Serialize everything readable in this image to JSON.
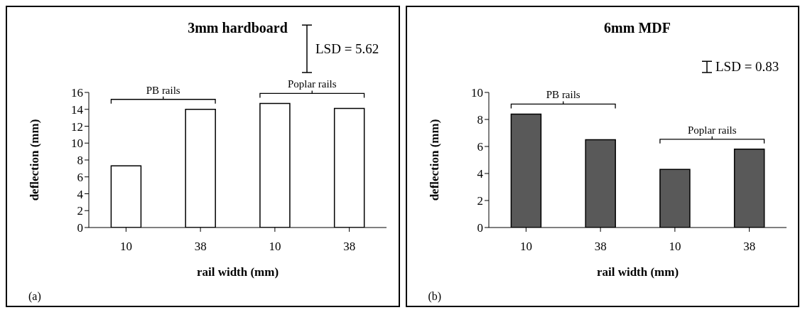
{
  "chart_data": [
    {
      "type": "bar",
      "title": "3mm hardboard",
      "xlabel": "rail width (mm)",
      "ylabel": "deflection (mm)",
      "categories": [
        "10",
        "38",
        "10",
        "38"
      ],
      "values": [
        7.3,
        14.0,
        14.7,
        14.1
      ],
      "color": "#ffffff",
      "ylim": [
        0,
        16
      ],
      "yticks": [
        0,
        2,
        4,
        6,
        8,
        10,
        12,
        14,
        16
      ],
      "grid": false,
      "annotations": [
        "LSD = 5.62",
        "PB rails",
        "Poplar rails",
        "(a)"
      ]
    },
    {
      "type": "bar",
      "title": "6mm MDF",
      "xlabel": "rail width (mm)",
      "ylabel": "deflection (mm)",
      "categories": [
        "10",
        "38",
        "10",
        "38"
      ],
      "values": [
        8.4,
        6.5,
        4.3,
        5.8
      ],
      "color": "#595959",
      "ylim": [
        0,
        10
      ],
      "yticks": [
        0,
        2,
        4,
        6,
        8,
        10
      ],
      "grid": false,
      "annotations": [
        "LSD = 0.83",
        "PB rails",
        "Poplar rails",
        "(b)"
      ]
    }
  ]
}
